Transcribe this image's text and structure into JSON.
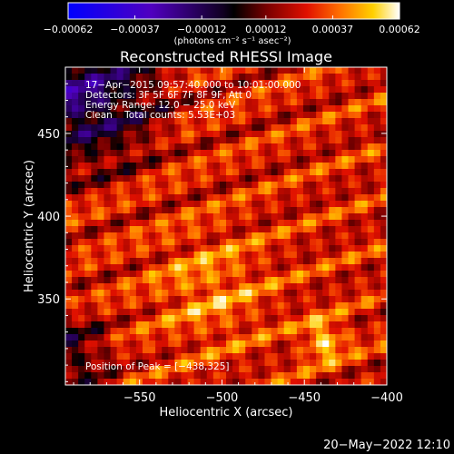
{
  "chart_data": {
    "type": "heatmap",
    "title": "Reconstructed RHESSI Image",
    "xlabel": "Heliocentric X (arcsec)",
    "ylabel": "Heliocentric Y (arcsec)",
    "xlim": [
      -595,
      -400
    ],
    "ylim": [
      298,
      490
    ],
    "x_ticks": [
      -550,
      -500,
      -450,
      -400
    ],
    "x_tick_labels": [
      "−550",
      "−500",
      "−450",
      "−400"
    ],
    "y_ticks": [
      350,
      400,
      450
    ],
    "y_tick_labels": [
      "350",
      "400",
      "450"
    ],
    "colorbar": {
      "range": [
        -0.00062,
        0.00062
      ],
      "ticks": [
        -0.00062,
        -0.00037,
        -0.00012,
        0.00012,
        0.00037,
        0.00062
      ],
      "tick_labels": [
        "−0.00062",
        "−0.00037",
        "−0.00012",
        "0.00012",
        "0.00037",
        "0.00062"
      ],
      "unit_label": "(photons cm⁻² s⁻¹ asec⁻²)"
    },
    "annotations": [
      "17−Apr−2015 09:57:40.000 to 10:01:00.000",
      "Detectors: 3F 5F 6F 7F 8F 9F, Att 0",
      "Energy Range: 12.0 − 25.0 keV",
      "Clean    Total counts: 5.53E+03"
    ],
    "peak_label": "Position of Peak = [−438,325]",
    "peak": [
      -438,
      325
    ],
    "grid": false,
    "legend": "colorbar-top"
  },
  "footer": {
    "date_stamp": "20−May−2022 12:10"
  },
  "colors": {
    "background": "#000000",
    "foreground": "#ffffff",
    "colormap_low": "#0000ff",
    "colormap_mid": "#000000",
    "colormap_high": "#ffffff"
  }
}
